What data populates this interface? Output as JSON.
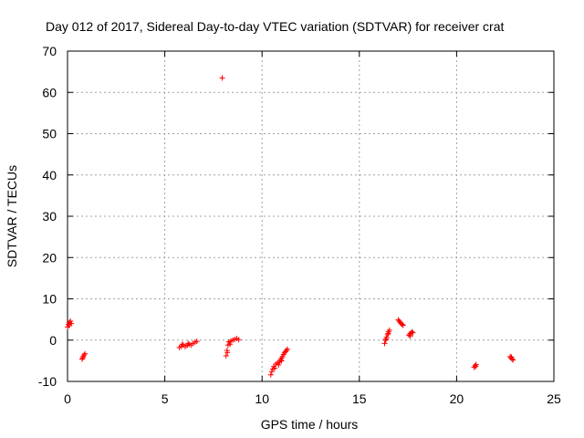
{
  "chart_data": {
    "type": "scatter",
    "title": "Day 012 of 2017, Sidereal Day-to-day VTEC variation (SDTVAR) for receiver crat",
    "xlabel": "GPS time / hours",
    "ylabel": "SDTVAR / TECUs",
    "xlim": [
      0,
      25
    ],
    "ylim": [
      -10,
      70
    ],
    "xticks": [
      "0",
      "5",
      "10",
      "15",
      "20",
      "25"
    ],
    "yticks": [
      "-10",
      "0",
      "10",
      "20",
      "30",
      "40",
      "50",
      "60",
      "70"
    ],
    "grid": true,
    "marker": "+",
    "color": "#ff0000",
    "series": [
      {
        "name": "SDTVAR",
        "points": [
          [
            0.0,
            3.2
          ],
          [
            0.05,
            3.8
          ],
          [
            0.1,
            4.3
          ],
          [
            0.15,
            4.6
          ],
          [
            0.2,
            4.0
          ],
          [
            0.08,
            3.5
          ],
          [
            0.75,
            -4.6
          ],
          [
            0.8,
            -4.0
          ],
          [
            0.85,
            -3.6
          ],
          [
            0.9,
            -3.3
          ],
          [
            0.78,
            -4.3
          ],
          [
            5.75,
            -1.8
          ],
          [
            5.85,
            -1.5
          ],
          [
            5.95,
            -1.2
          ],
          [
            6.05,
            -1.6
          ],
          [
            6.15,
            -1.3
          ],
          [
            6.25,
            -1.0
          ],
          [
            6.35,
            -1.2
          ],
          [
            6.45,
            -0.8
          ],
          [
            6.55,
            -0.5
          ],
          [
            6.65,
            -0.3
          ],
          [
            5.9,
            -1.0
          ],
          [
            6.2,
            -0.8
          ],
          [
            7.95,
            63.5
          ],
          [
            8.15,
            -3.8
          ],
          [
            8.2,
            -2.5
          ],
          [
            8.25,
            -1.2
          ],
          [
            8.3,
            -0.4
          ],
          [
            8.4,
            -0.2
          ],
          [
            8.5,
            0.0
          ],
          [
            8.6,
            0.2
          ],
          [
            8.7,
            0.4
          ],
          [
            8.8,
            0.1
          ],
          [
            8.22,
            -3.0
          ],
          [
            8.35,
            -1.0
          ],
          [
            10.45,
            -8.4
          ],
          [
            10.5,
            -7.6
          ],
          [
            10.55,
            -7.0
          ],
          [
            10.6,
            -6.4
          ],
          [
            10.7,
            -5.8
          ],
          [
            10.8,
            -5.5
          ],
          [
            10.9,
            -5.2
          ],
          [
            10.95,
            -4.8
          ],
          [
            11.0,
            -4.4
          ],
          [
            11.05,
            -4.0
          ],
          [
            11.1,
            -3.5
          ],
          [
            11.15,
            -3.1
          ],
          [
            11.2,
            -2.8
          ],
          [
            11.25,
            -2.5
          ],
          [
            11.3,
            -2.2
          ],
          [
            10.65,
            -6.8
          ],
          [
            10.85,
            -6.0
          ],
          [
            11.0,
            -5.0
          ],
          [
            16.3,
            -0.8
          ],
          [
            16.35,
            0.0
          ],
          [
            16.4,
            0.7
          ],
          [
            16.45,
            1.3
          ],
          [
            16.5,
            2.0
          ],
          [
            16.55,
            2.4
          ],
          [
            16.38,
            0.3
          ],
          [
            16.48,
            1.6
          ],
          [
            17.0,
            4.9
          ],
          [
            17.05,
            4.6
          ],
          [
            17.1,
            4.3
          ],
          [
            17.15,
            4.0
          ],
          [
            17.2,
            3.8
          ],
          [
            17.25,
            3.6
          ],
          [
            17.55,
            1.2
          ],
          [
            17.6,
            1.5
          ],
          [
            17.65,
            1.7
          ],
          [
            17.7,
            2.0
          ],
          [
            17.75,
            1.8
          ],
          [
            17.62,
            1.0
          ],
          [
            20.9,
            -6.6
          ],
          [
            20.95,
            -6.2
          ],
          [
            21.0,
            -5.9
          ],
          [
            20.98,
            -6.4
          ],
          [
            22.75,
            -4.0
          ],
          [
            22.8,
            -4.3
          ],
          [
            22.85,
            -4.6
          ],
          [
            22.9,
            -4.8
          ],
          [
            22.82,
            -4.1
          ]
        ]
      }
    ]
  }
}
